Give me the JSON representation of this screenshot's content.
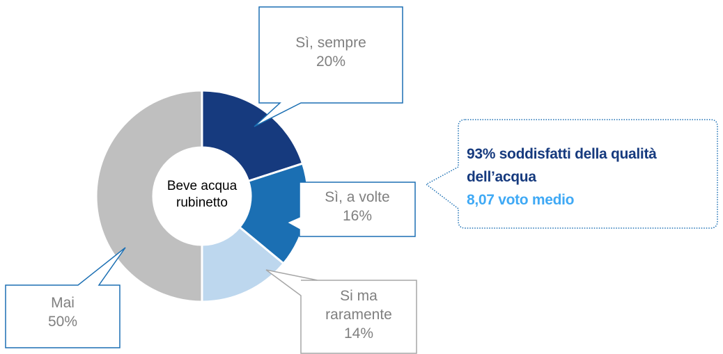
{
  "chart_data": {
    "type": "pie",
    "donut": true,
    "center_label": "Beve acqua rubinetto",
    "categories": [
      "Sì, sempre",
      "Sì, a volte",
      "Si ma raramente",
      "Mai"
    ],
    "values": [
      20,
      16,
      14,
      50
    ],
    "value_labels": [
      "20%",
      "16%",
      "14%",
      "50%"
    ],
    "colors": [
      "#163a7e",
      "#1b6fb3",
      "#bdd7ee",
      "#bfbfbf"
    ]
  },
  "annotation": {
    "line1": "93% soddisfatti della qualità dell’acqua",
    "line2": "8,07 voto medio"
  }
}
